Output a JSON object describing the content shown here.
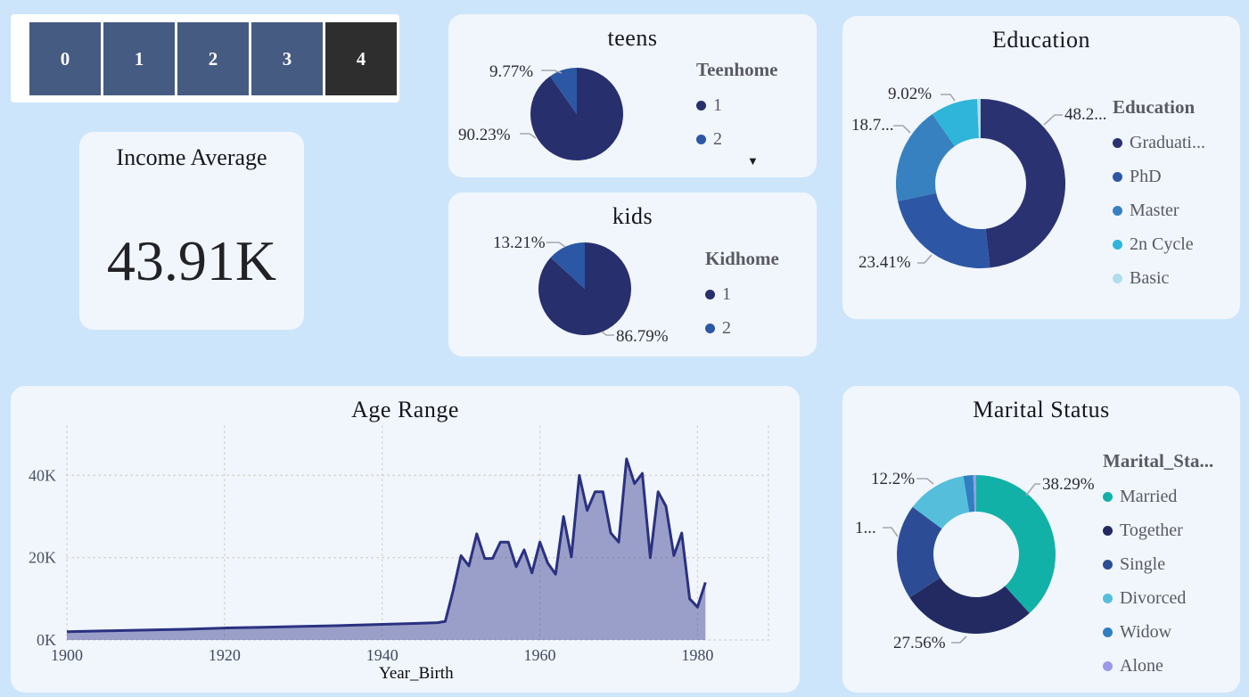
{
  "slicer": {
    "options": [
      {
        "label": "0",
        "selected": false
      },
      {
        "label": "1",
        "selected": false
      },
      {
        "label": "2",
        "selected": false
      },
      {
        "label": "3",
        "selected": false
      },
      {
        "label": "4",
        "selected": true
      }
    ]
  },
  "income_card": {
    "title": "Income Average",
    "value": "43.91K"
  },
  "chart_data": [
    {
      "id": "teens",
      "type": "pie",
      "title": "teens",
      "legend_title": "Teenhome",
      "slices": [
        {
          "name": "1",
          "value": 90.23,
          "pct_label": "90.23%",
          "color": "#282f6d"
        },
        {
          "name": "2",
          "value": 9.77,
          "pct_label": "9.77%",
          "color": "#2b57a5"
        }
      ]
    },
    {
      "id": "kids",
      "type": "pie",
      "title": "kids",
      "legend_title": "Kidhome",
      "slices": [
        {
          "name": "1",
          "value": 86.79,
          "pct_label": "86.79%",
          "color": "#282f6d"
        },
        {
          "name": "2",
          "value": 13.21,
          "pct_label": "13.21%",
          "color": "#2b57a5"
        }
      ]
    },
    {
      "id": "education",
      "type": "donut",
      "title": "Education",
      "legend_title": "Education",
      "slices": [
        {
          "name": "Graduati...",
          "value": 48.25,
          "pct_label": "48.2...",
          "color": "#2a3272"
        },
        {
          "name": "PhD",
          "value": 23.41,
          "pct_label": "23.41%",
          "color": "#2d57a5"
        },
        {
          "name": "Master",
          "value": 18.67,
          "pct_label": "18.7...",
          "color": "#3781c1"
        },
        {
          "name": "2n Cycle",
          "value": 9.02,
          "pct_label": "9.02%",
          "color": "#2fb5d9"
        },
        {
          "name": "Basic",
          "value": 0.65,
          "pct_label": "",
          "color": "#b0deed"
        }
      ]
    },
    {
      "id": "age_range",
      "type": "area",
      "title": "Age Range",
      "xlabel": "Year_Birth",
      "xlim": [
        1900,
        1989
      ],
      "ylim": [
        0,
        52
      ],
      "xticks": [
        {
          "v": 1900,
          "label": "1900"
        },
        {
          "v": 1920,
          "label": "1920"
        },
        {
          "v": 1940,
          "label": "1940"
        },
        {
          "v": 1960,
          "label": "1960"
        },
        {
          "v": 1980,
          "label": "1980"
        },
        {
          "v": 1989,
          "label": ""
        }
      ],
      "yticks": [
        {
          "v": 0,
          "label": "0K"
        },
        {
          "v": 20,
          "label": "20K"
        },
        {
          "v": 40,
          "label": "40K"
        }
      ],
      "y_unit": "thousands",
      "x": [
        1900,
        1905,
        1910,
        1915,
        1920,
        1925,
        1930,
        1935,
        1940,
        1944,
        1947,
        1948,
        1949,
        1950,
        1951,
        1952,
        1953,
        1954,
        1955,
        1956,
        1957,
        1958,
        1959,
        1960,
        1961,
        1962,
        1963,
        1964,
        1965,
        1966,
        1967,
        1968,
        1969,
        1970,
        1971,
        1972,
        1973,
        1974,
        1975,
        1976,
        1977,
        1978,
        1979,
        1980,
        1981
      ],
      "y": [
        2.0,
        2.2,
        2.4,
        2.6,
        2.9,
        3.1,
        3.3,
        3.5,
        3.8,
        4.0,
        4.2,
        4.5,
        12,
        20.5,
        18,
        25.8,
        19.8,
        19.8,
        23.8,
        23.8,
        17.8,
        21.9,
        16.3,
        23.8,
        18.7,
        16,
        30,
        20.2,
        40,
        31.5,
        36,
        36,
        26,
        23.8,
        44,
        38,
        40.5,
        20,
        36,
        32.5,
        20.5,
        26,
        10,
        8,
        14
      ],
      "line_color": "#2b3180",
      "fill_color": "rgba(58,65,144,0.48)",
      "grid_color": "#d8d2c8"
    },
    {
      "id": "marital",
      "type": "donut",
      "title": "Marital Status",
      "legend_title": "Marital_Sta...",
      "slices": [
        {
          "name": "Married",
          "value": 38.29,
          "pct_label": "38.29%",
          "color": "#12b1a7"
        },
        {
          "name": "Together",
          "value": 27.56,
          "pct_label": "27.56%",
          "color": "#232a62"
        },
        {
          "name": "Single",
          "value": 19.35,
          "pct_label": "1...",
          "color": "#2c4d95"
        },
        {
          "name": "Divorced",
          "value": 12.2,
          "pct_label": "12.2%",
          "color": "#55bfdb"
        },
        {
          "name": "Widow",
          "value": 2.0,
          "pct_label": "",
          "color": "#2f7fc1"
        },
        {
          "name": "Alone",
          "value": 0.6,
          "pct_label": "",
          "color": "#9b99e8"
        }
      ]
    }
  ]
}
